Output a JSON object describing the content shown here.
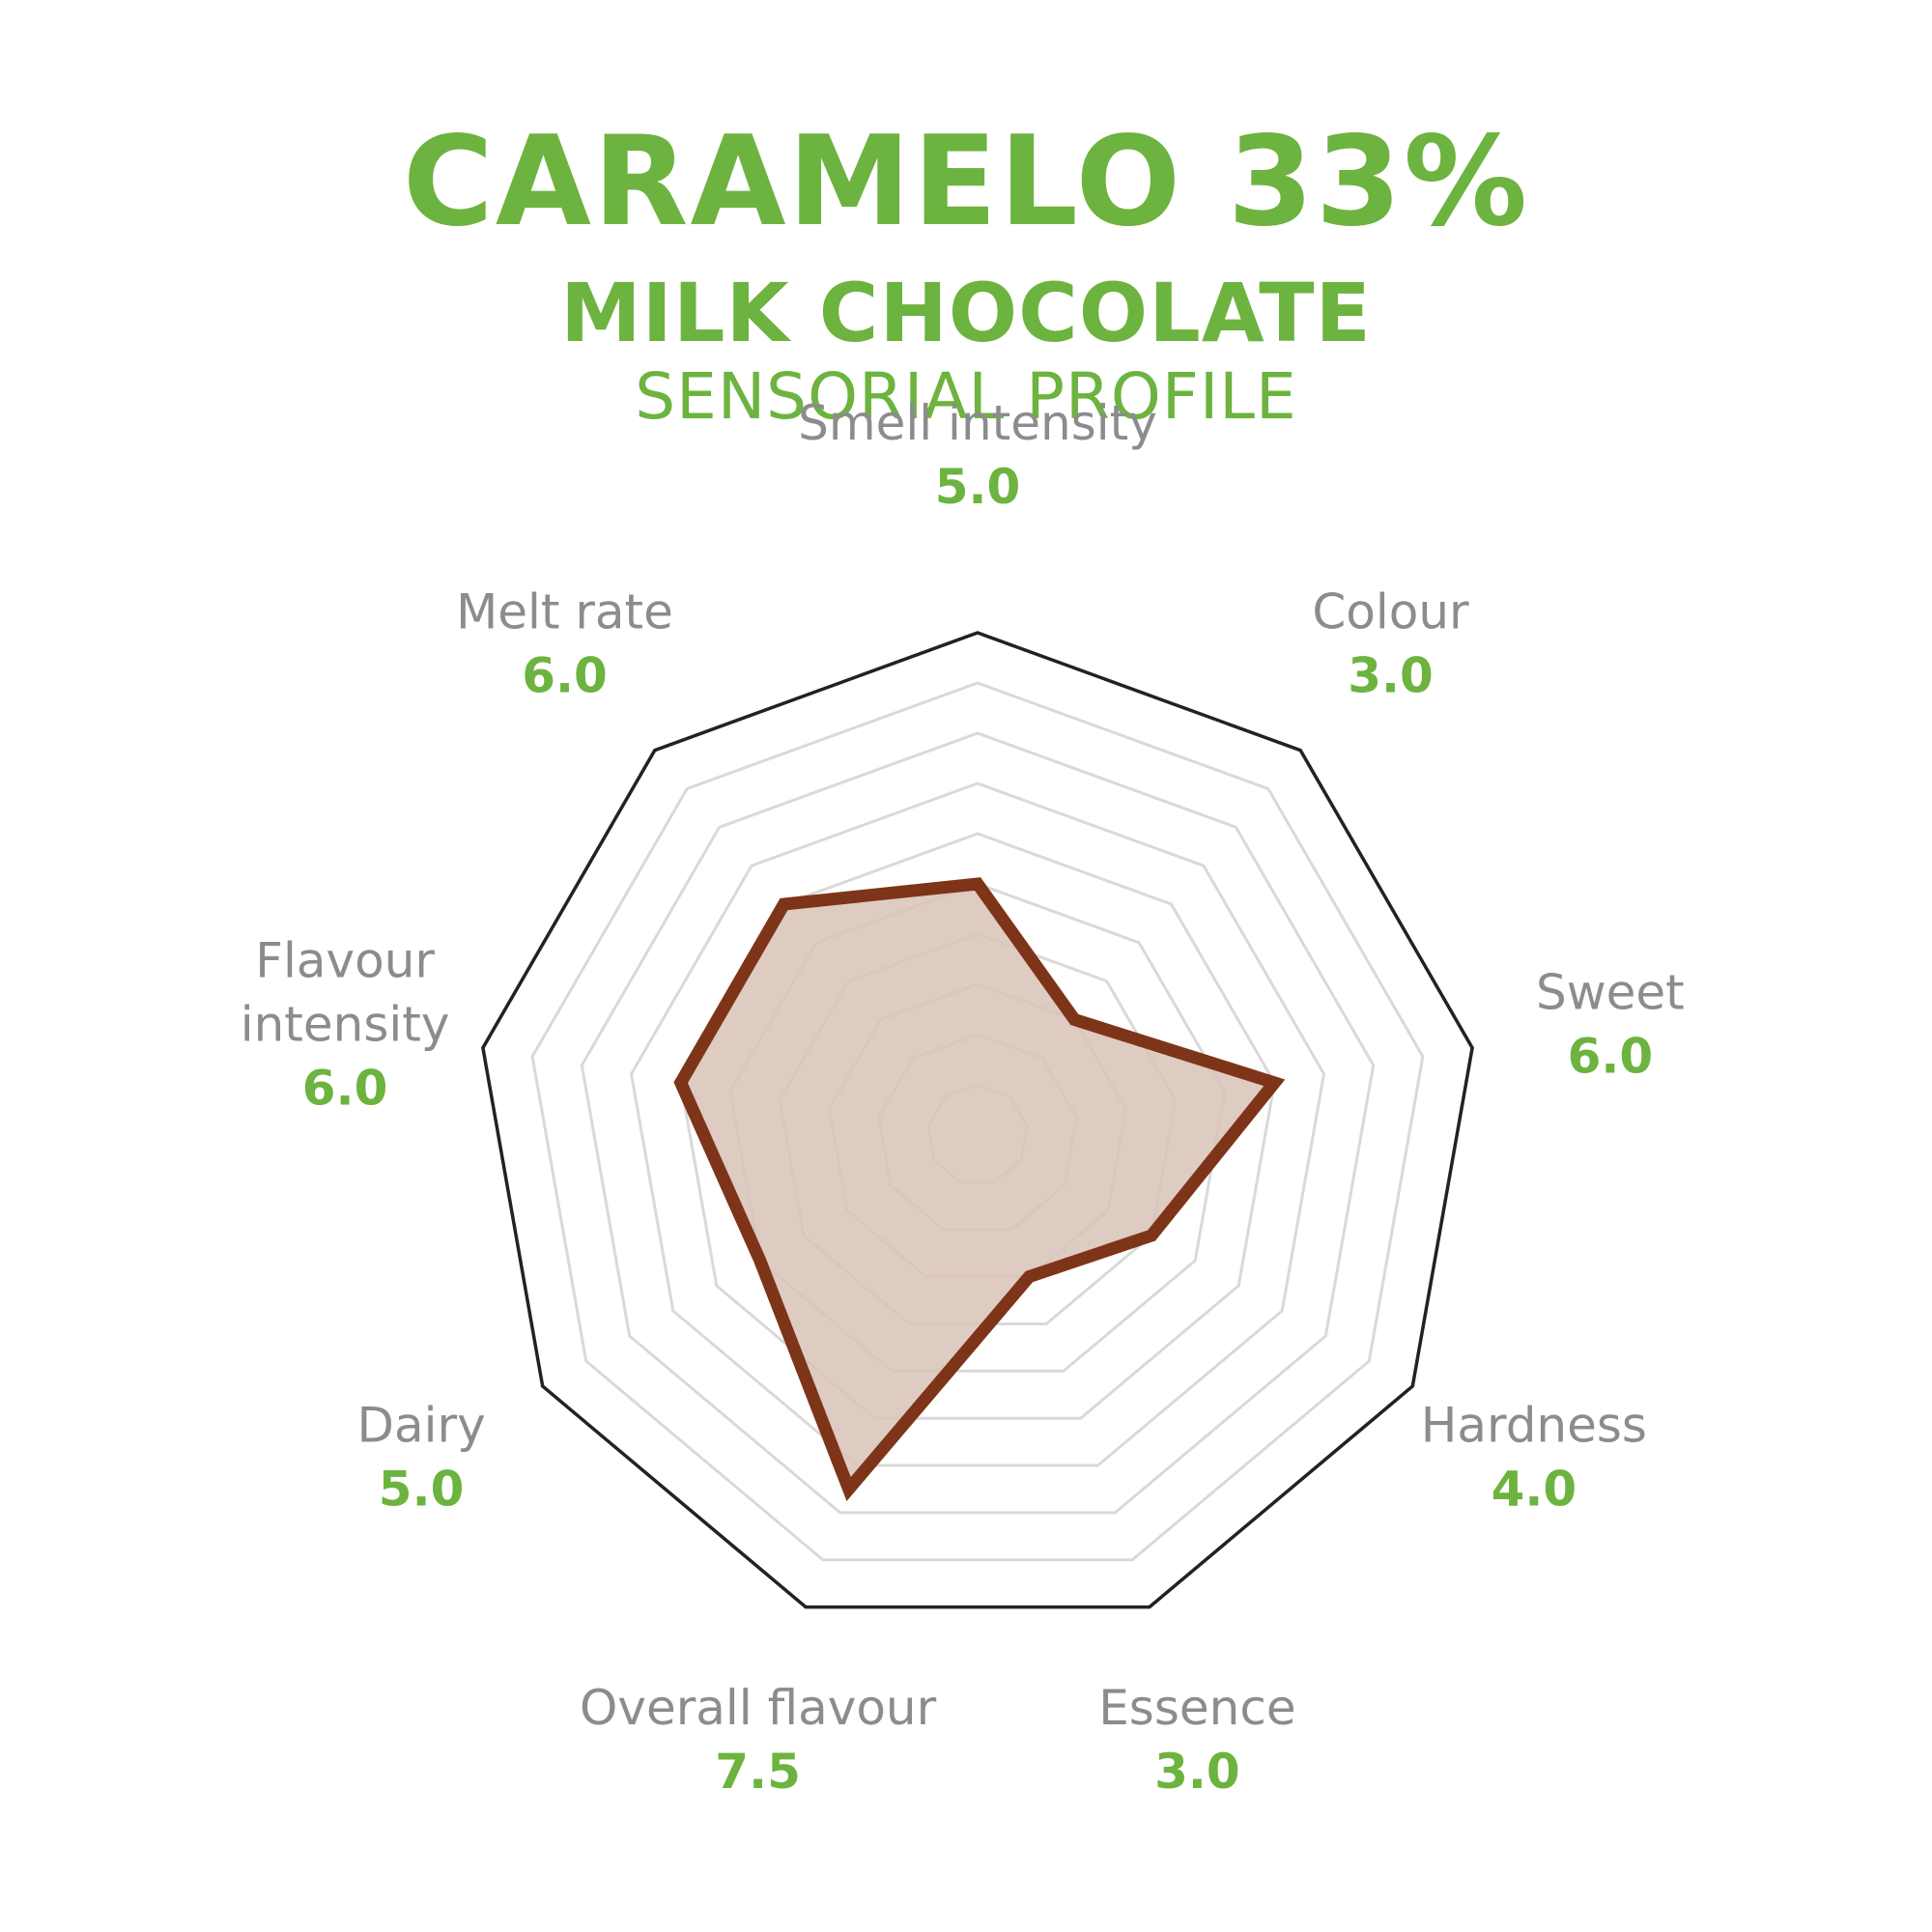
{
  "header": {
    "title": "CARAMELO 33%",
    "subtitle": "MILK CHOCOLATE",
    "tagline": "SENSORIAL PROFILE"
  },
  "colors": {
    "accent": "#6db33f",
    "label": "#8c8c8c",
    "series_stroke": "#7e3418",
    "series_fill": "#d8c2b6",
    "grid": "#d9d9d9",
    "frame": "#222222"
  },
  "chart_data": {
    "type": "radar",
    "scale": [
      0,
      10
    ],
    "rings": 9,
    "axes": [
      {
        "name": "Smell intensity",
        "value_label": "5.0",
        "value": 5.0
      },
      {
        "name": "Colour",
        "value_label": "3.0",
        "value": 3.0
      },
      {
        "name": "Sweet",
        "value_label": "6.0",
        "value": 6.0
      },
      {
        "name": "Hardness",
        "value_label": "4.0",
        "value": 4.0
      },
      {
        "name": "Essence",
        "value_label": "3.0",
        "value": 3.0
      },
      {
        "name": "Overall flavour",
        "value_label": "7.5",
        "value": 7.5
      },
      {
        "name": "Dairy",
        "value_label": "5.0",
        "value": 5.0
      },
      {
        "name": "Flavour intensity",
        "value_label": "6.0",
        "value": 6.0
      },
      {
        "name": "Melt rate",
        "value_label": "6.0",
        "value": 6.0
      }
    ]
  }
}
